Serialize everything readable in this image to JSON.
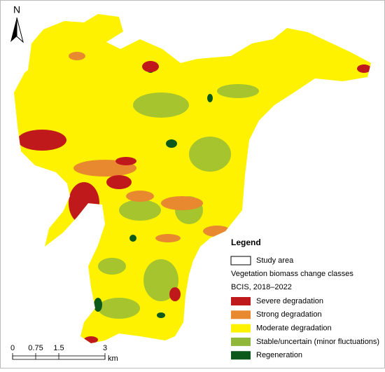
{
  "north": "N",
  "legend": {
    "title": "Legend",
    "study_area": "Study area",
    "subtitle": [
      "Vegetation biomass change classes",
      "BCIS, 2018–2022"
    ],
    "items": [
      {
        "label": "Severe degradation",
        "color": "#c0191c"
      },
      {
        "label": "Strong degradation",
        "color": "#e8892f"
      },
      {
        "label": "Moderate degradation",
        "color": "#fff200"
      },
      {
        "label": "Stable/uncertain (minor fluctuations)",
        "color": "#8fb83a"
      },
      {
        "label": "Regeneration",
        "color": "#0b5a1c"
      }
    ]
  },
  "scale_bar": {
    "labels": [
      "0",
      "0.75",
      "1.5",
      "3"
    ],
    "unit": "km"
  }
}
